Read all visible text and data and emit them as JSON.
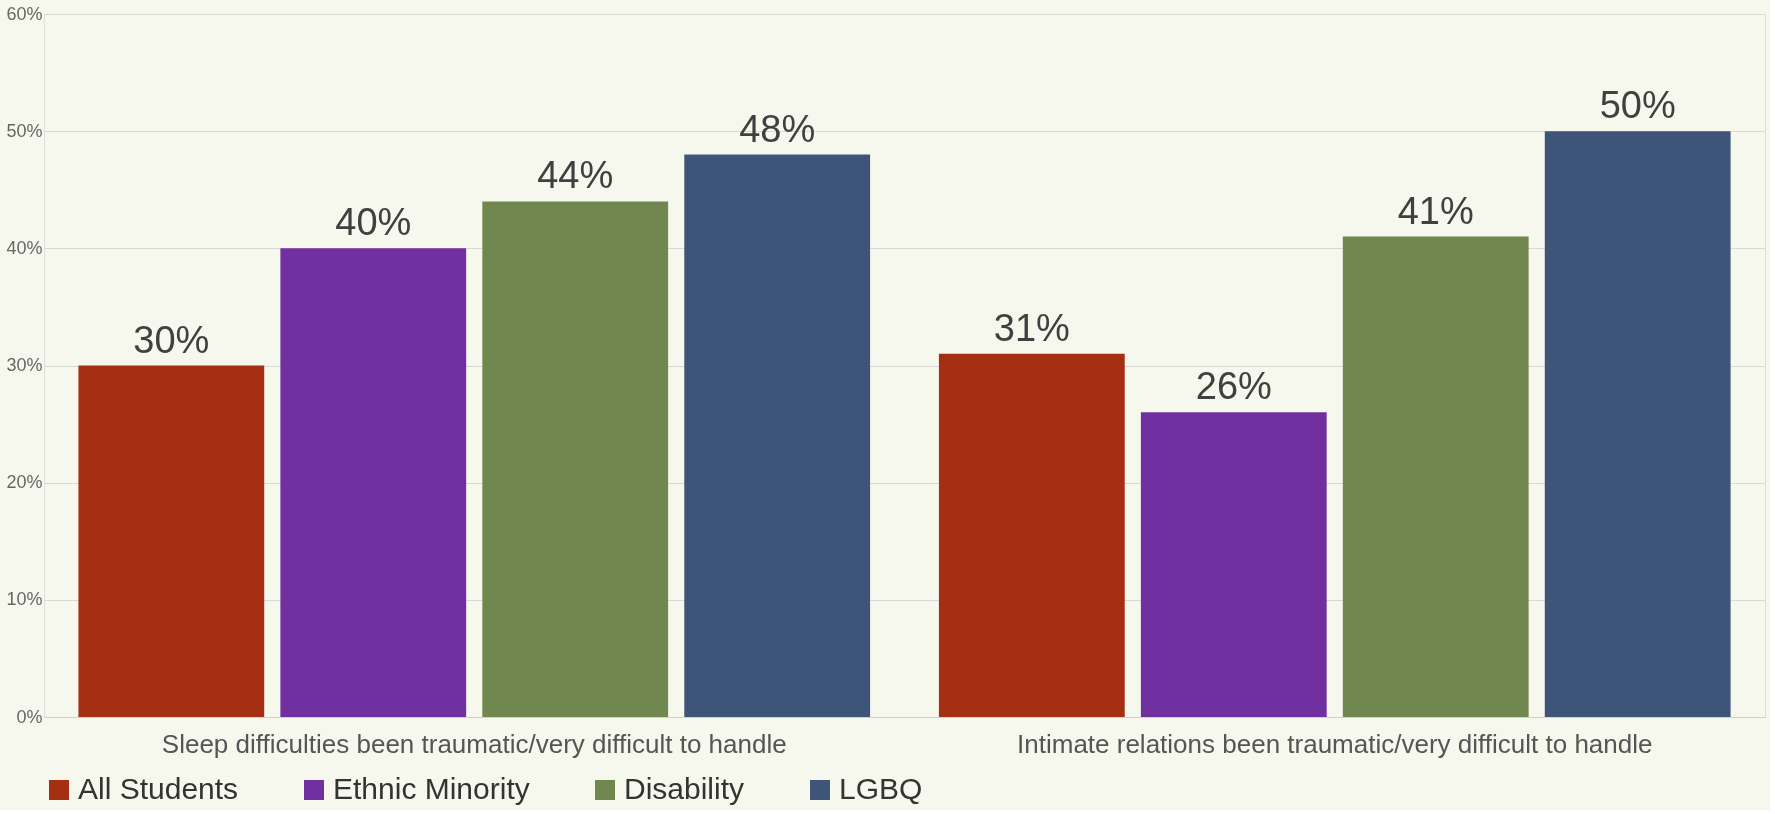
{
  "chart_data": {
    "type": "bar",
    "categories": [
      "Sleep difficulties been traumatic/very difficult to handle",
      "Intimate relations been traumatic/very difficult to handle"
    ],
    "series": [
      {
        "name": "All Students",
        "color": "#a52f12",
        "values": [
          30,
          31
        ],
        "value_labels": [
          "30%",
          "31%"
        ]
      },
      {
        "name": "Ethnic Minority",
        "color": "#7030a0",
        "values": [
          40,
          26
        ],
        "value_labels": [
          "40%",
          "26%"
        ]
      },
      {
        "name": "Disability",
        "color": "#70884f",
        "values": [
          44,
          41
        ],
        "value_labels": [
          "44%",
          "41%"
        ]
      },
      {
        "name": "LGBQ",
        "color": "#3f5479",
        "values": [
          48,
          50
        ],
        "value_labels": [
          "48%",
          "50%"
        ]
      }
    ],
    "ylim": [
      0,
      60
    ],
    "yticks": [
      {
        "value": 0,
        "label": "0%"
      },
      {
        "value": 10,
        "label": "10%"
      },
      {
        "value": 20,
        "label": "20%"
      },
      {
        "value": 30,
        "label": "30%"
      },
      {
        "value": 40,
        "label": "40%"
      },
      {
        "value": 50,
        "label": "50%"
      },
      {
        "value": 60,
        "label": "60%"
      }
    ],
    "grid": "y",
    "legend": "bottom"
  }
}
